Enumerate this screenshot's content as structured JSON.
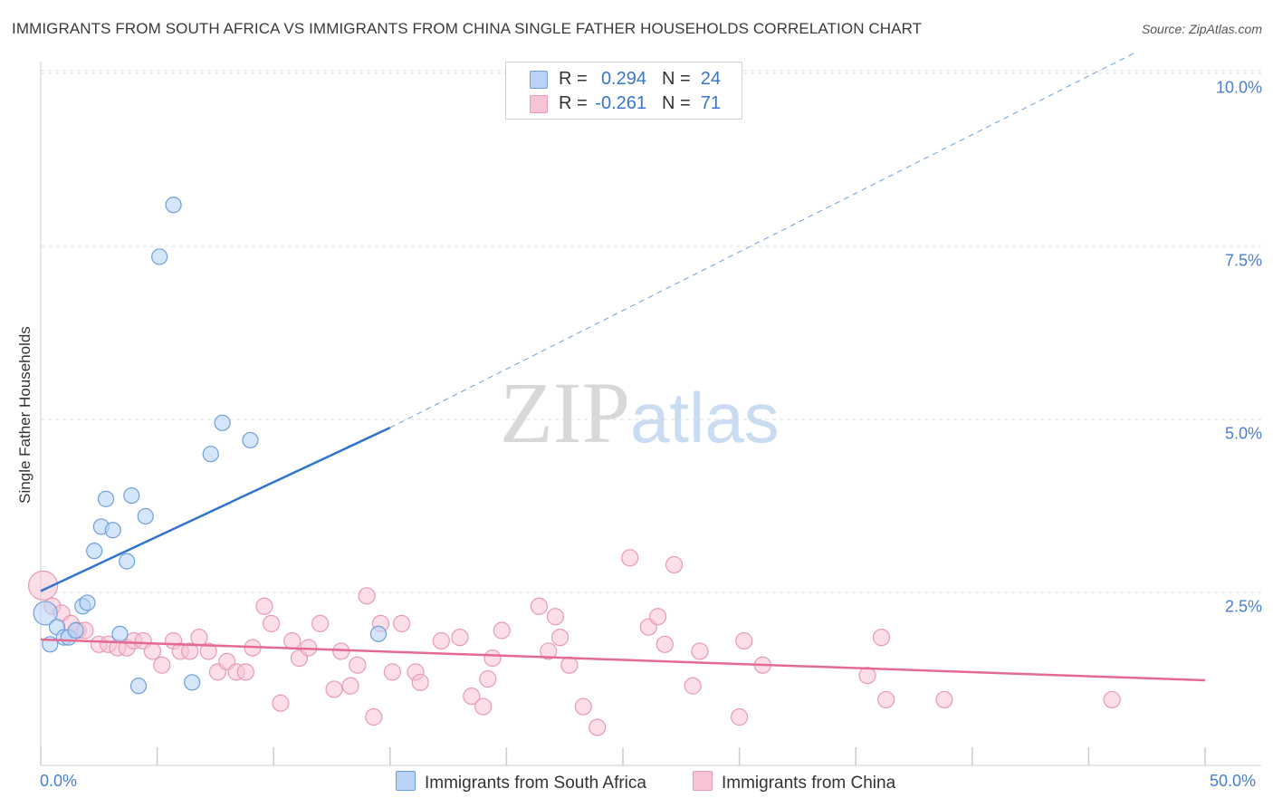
{
  "title": "IMMIGRANTS FROM SOUTH AFRICA VS IMMIGRANTS FROM CHINA SINGLE FATHER HOUSEHOLDS CORRELATION CHART",
  "source": "Source: ZipAtlas.com",
  "watermark": {
    "zip": "ZIP",
    "atlas": "atlas"
  },
  "colors": {
    "blue_fill": "#b9d3f7",
    "blue_stroke": "#6f9fdc",
    "blue_line": "#2f74cf",
    "pink_fill": "#f8c3d3",
    "pink_stroke": "#e99ab3",
    "pink_line": "#e46a95",
    "axis_label": "#4a7ed0",
    "grid": "#dddddd"
  },
  "legend": {
    "rows": [
      {
        "r_label": "R =",
        "r_value": "0.294",
        "n_label": "N =",
        "n_value": "24"
      },
      {
        "r_label": "R =",
        "r_value": "-0.261",
        "n_label": "N =",
        "n_value": "71"
      }
    ]
  },
  "bottom_legend": [
    "Immigrants from South Africa",
    "Immigrants from China"
  ],
  "chart_data": {
    "type": "scatter",
    "title": "IMMIGRANTS FROM SOUTH AFRICA VS IMMIGRANTS FROM CHINA SINGLE FATHER HOUSEHOLDS CORRELATION CHART",
    "xlabel": "",
    "ylabel": "Single Father Households",
    "xlim": [
      0,
      50
    ],
    "ylim": [
      0,
      10.3
    ],
    "y_ticks": [
      "2.5%",
      "5.0%",
      "7.5%",
      "10.0%"
    ],
    "y_tick_values": [
      2.5,
      5.0,
      7.5,
      10.0
    ],
    "x_tick_labels": [
      "0.0%",
      "50.0%"
    ],
    "grid": true,
    "legend_position": "top-center",
    "series": [
      {
        "name": "Immigrants from South Africa",
        "r": 0.294,
        "n": 24,
        "trend": {
          "x": [
            0,
            15
          ],
          "y": [
            2.52,
            4.88
          ],
          "dashed_extension_to": [
            47,
            10.3
          ]
        },
        "points": [
          [
            0.2,
            2.2
          ],
          [
            0.4,
            1.75
          ],
          [
            0.7,
            2.0
          ],
          [
            1.0,
            1.85
          ],
          [
            1.2,
            1.85
          ],
          [
            1.5,
            1.95
          ],
          [
            1.8,
            2.3
          ],
          [
            2.0,
            2.35
          ],
          [
            2.3,
            3.1
          ],
          [
            2.6,
            3.45
          ],
          [
            2.8,
            3.85
          ],
          [
            3.1,
            3.4
          ],
          [
            3.7,
            2.95
          ],
          [
            3.9,
            3.9
          ],
          [
            3.4,
            1.9
          ],
          [
            4.2,
            1.15
          ],
          [
            4.5,
            3.6
          ],
          [
            5.1,
            7.35
          ],
          [
            5.7,
            8.1
          ],
          [
            6.5,
            1.2
          ],
          [
            7.3,
            4.5
          ],
          [
            7.8,
            4.95
          ],
          [
            9.0,
            4.7
          ],
          [
            14.5,
            1.9
          ]
        ]
      },
      {
        "name": "Immigrants from China",
        "r": -0.261,
        "n": 71,
        "trend": {
          "x": [
            0,
            50
          ],
          "y": [
            1.82,
            1.23
          ]
        },
        "points": [
          [
            0.1,
            2.6
          ],
          [
            0.5,
            2.3
          ],
          [
            0.9,
            2.2
          ],
          [
            1.3,
            2.05
          ],
          [
            1.6,
            1.95
          ],
          [
            1.9,
            1.95
          ],
          [
            2.5,
            1.75
          ],
          [
            2.9,
            1.75
          ],
          [
            3.3,
            1.7
          ],
          [
            3.7,
            1.7
          ],
          [
            4.0,
            1.8
          ],
          [
            4.4,
            1.8
          ],
          [
            4.8,
            1.65
          ],
          [
            5.2,
            1.45
          ],
          [
            5.7,
            1.8
          ],
          [
            6.0,
            1.65
          ],
          [
            6.4,
            1.65
          ],
          [
            6.8,
            1.85
          ],
          [
            7.2,
            1.65
          ],
          [
            7.6,
            1.35
          ],
          [
            8.0,
            1.5
          ],
          [
            8.4,
            1.35
          ],
          [
            8.8,
            1.35
          ],
          [
            9.1,
            1.7
          ],
          [
            9.6,
            2.3
          ],
          [
            9.9,
            2.05
          ],
          [
            10.3,
            0.9
          ],
          [
            10.8,
            1.8
          ],
          [
            11.1,
            1.55
          ],
          [
            11.5,
            1.7
          ],
          [
            12.0,
            2.05
          ],
          [
            12.6,
            1.1
          ],
          [
            12.9,
            1.65
          ],
          [
            13.3,
            1.15
          ],
          [
            13.6,
            1.45
          ],
          [
            14.0,
            2.45
          ],
          [
            14.3,
            0.7
          ],
          [
            14.6,
            2.05
          ],
          [
            15.1,
            1.35
          ],
          [
            15.5,
            2.05
          ],
          [
            16.1,
            1.35
          ],
          [
            16.3,
            1.2
          ],
          [
            17.2,
            1.8
          ],
          [
            18.0,
            1.85
          ],
          [
            18.5,
            1.0
          ],
          [
            19.0,
            0.85
          ],
          [
            19.2,
            1.25
          ],
          [
            19.4,
            1.55
          ],
          [
            19.8,
            1.95
          ],
          [
            21.4,
            2.3
          ],
          [
            21.8,
            1.65
          ],
          [
            22.1,
            2.15
          ],
          [
            22.3,
            1.85
          ],
          [
            22.7,
            1.45
          ],
          [
            23.3,
            0.85
          ],
          [
            23.9,
            0.55
          ],
          [
            25.3,
            3.0
          ],
          [
            26.1,
            2.0
          ],
          [
            26.5,
            2.15
          ],
          [
            26.8,
            1.75
          ],
          [
            27.2,
            2.9
          ],
          [
            28.0,
            1.15
          ],
          [
            28.3,
            1.65
          ],
          [
            30.0,
            0.7
          ],
          [
            30.2,
            1.8
          ],
          [
            31.0,
            1.45
          ],
          [
            35.5,
            1.3
          ],
          [
            36.1,
            1.85
          ],
          [
            36.3,
            0.95
          ],
          [
            38.8,
            0.95
          ],
          [
            46.0,
            0.95
          ]
        ]
      }
    ]
  }
}
